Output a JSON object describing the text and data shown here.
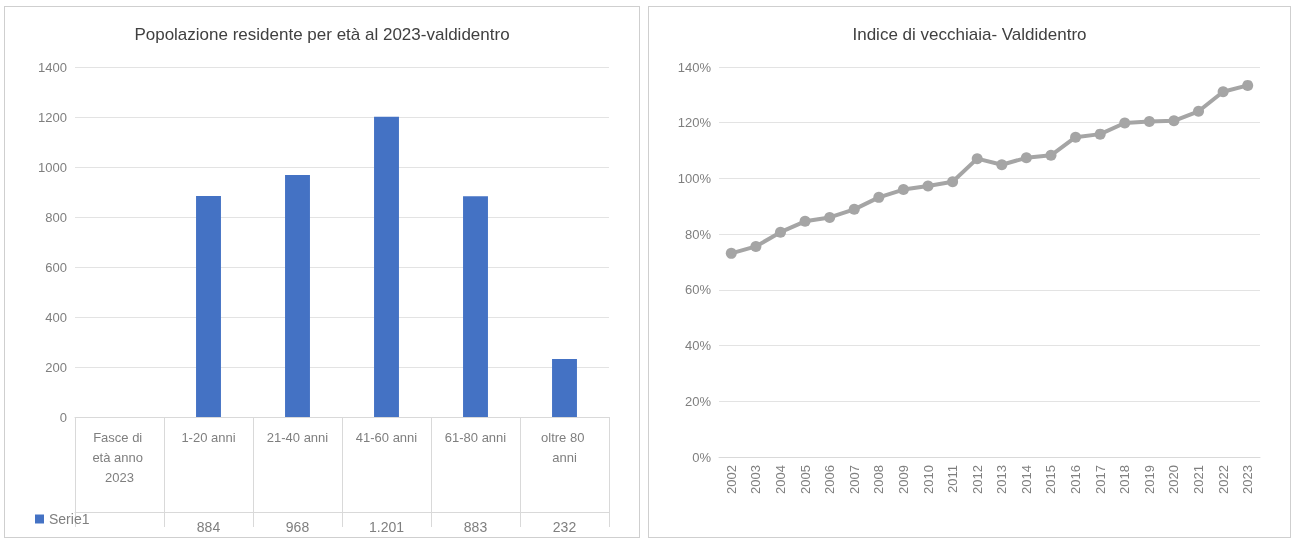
{
  "chart_data": [
    {
      "type": "bar",
      "title": "Popolazione residente per età al 2023-valdidentro",
      "categories": [
        "Fasce di età anno 2023",
        "1-20 anni",
        "21-40 anni",
        "41-60 anni",
        "61-80 anni",
        "oltre 80 anni"
      ],
      "series": [
        {
          "name": "Serie1",
          "color": "#4472c4",
          "values": [
            null,
            884,
            968,
            1201,
            883,
            232
          ],
          "value_labels": [
            null,
            "884",
            "968",
            "1.201",
            "883",
            "232"
          ]
        }
      ],
      "ylim": [
        0,
        1400
      ],
      "yticks": [
        0,
        200,
        400,
        600,
        800,
        1000,
        1200,
        1400
      ],
      "grid": "y",
      "legend": "bottom left"
    },
    {
      "type": "line",
      "title": "Indice di vecchiaia- Valdidentro",
      "categories": [
        "2002",
        "2003",
        "2004",
        "2005",
        "2006",
        "2007",
        "2008",
        "2009",
        "2010",
        "2011",
        "2012",
        "2013",
        "2014",
        "2015",
        "2016",
        "2017",
        "2018",
        "2019",
        "2020",
        "2021",
        "2022",
        "2023"
      ],
      "series": [
        {
          "color": "#a5a5a5",
          "values": [
            73.1,
            75.6,
            80.7,
            84.6,
            86.0,
            88.9,
            93.2,
            96.0,
            97.3,
            98.8,
            107.1,
            104.9,
            107.4,
            108.3,
            114.8,
            115.9,
            119.9,
            120.4,
            120.7,
            124.1,
            131.1,
            133.4
          ]
        }
      ],
      "ylim": [
        0,
        140
      ],
      "yticks": [
        {
          "value": 0,
          "label": "0%"
        },
        {
          "value": 20,
          "label": "20%"
        },
        {
          "value": 40,
          "label": "40%"
        },
        {
          "value": 60,
          "label": "60%"
        },
        {
          "value": 80,
          "label": "80%"
        },
        {
          "value": 100,
          "label": "100%"
        },
        {
          "value": 120,
          "label": "120%"
        },
        {
          "value": 140,
          "label": "140%"
        }
      ],
      "grid": "y",
      "marker": "circle",
      "line_style": "solid"
    }
  ]
}
